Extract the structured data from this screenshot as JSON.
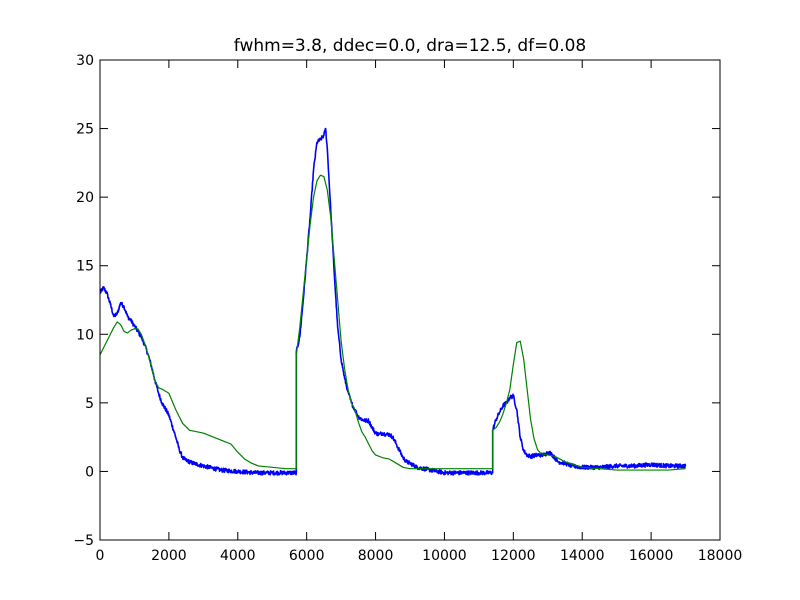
{
  "chart_data": {
    "type": "line",
    "title": "fwhm=3.8, ddec=0.0, dra=12.5, df=0.08",
    "xlabel": "",
    "ylabel": "",
    "xlim": [
      0,
      18000
    ],
    "ylim": [
      -5,
      30
    ],
    "xticks": [
      0,
      2000,
      4000,
      6000,
      8000,
      10000,
      12000,
      14000,
      16000,
      18000
    ],
    "yticks": [
      -5,
      0,
      5,
      10,
      15,
      20,
      25,
      30
    ],
    "grid": false,
    "series": [
      {
        "color": "#0000ff",
        "noise": 0.15,
        "x": [
          0,
          100,
          200,
          300,
          400,
          500,
          600,
          700,
          800,
          900,
          1000,
          1100,
          1200,
          1300,
          1400,
          1500,
          1600,
          1700,
          1800,
          2000,
          2200,
          2300,
          2400,
          2500,
          2700,
          3000,
          3500,
          4000,
          4500,
          5000,
          5500,
          5700,
          5700,
          5800,
          5900,
          6000,
          6100,
          6200,
          6300,
          6400,
          6500,
          6550,
          6600,
          6700,
          6800,
          6900,
          7000,
          7100,
          7200,
          7300,
          7400,
          7500,
          7600,
          7700,
          7800,
          7900,
          8000,
          8100,
          8200,
          8300,
          8400,
          8500,
          8600,
          8700,
          8800,
          8900,
          9000,
          9200,
          9400,
          9600,
          9800,
          10000,
          10500,
          11000,
          11400,
          11400,
          11500,
          11600,
          11700,
          11800,
          11900,
          12000,
          12100,
          12200,
          12300,
          12400,
          12500,
          12700,
          12900,
          13000,
          13100,
          13200,
          13300,
          13500,
          13700,
          14000,
          14500,
          15000,
          15500,
          16000,
          16500,
          17000
        ],
        "y": [
          13.0,
          13.4,
          13.0,
          12.2,
          11.3,
          11.5,
          12.3,
          12.0,
          11.3,
          11.0,
          10.6,
          10.2,
          9.8,
          9.2,
          8.5,
          7.6,
          6.6,
          5.7,
          5.0,
          4.1,
          2.5,
          1.6,
          1.0,
          0.8,
          0.6,
          0.4,
          0.1,
          0.0,
          -0.1,
          -0.1,
          -0.1,
          -0.1,
          8.7,
          9.8,
          12.5,
          15.5,
          18.5,
          22.0,
          24.0,
          24.2,
          24.5,
          25.0,
          23.5,
          19.0,
          14.5,
          10.5,
          8.2,
          6.8,
          5.8,
          5.0,
          4.5,
          4.0,
          3.8,
          3.7,
          3.7,
          3.2,
          2.8,
          2.7,
          2.8,
          2.7,
          2.7,
          2.5,
          2.0,
          1.5,
          1.0,
          0.7,
          0.6,
          0.3,
          0.2,
          0.1,
          0.0,
          -0.1,
          -0.1,
          -0.1,
          -0.1,
          3.0,
          3.8,
          4.3,
          4.8,
          5.0,
          5.4,
          5.5,
          4.5,
          2.5,
          1.5,
          1.2,
          1.1,
          1.2,
          1.2,
          1.4,
          1.3,
          1.0,
          0.7,
          0.6,
          0.4,
          0.3,
          0.3,
          0.4,
          0.4,
          0.5,
          0.4,
          0.4
        ]
      },
      {
        "color": "#008000",
        "noise": 0,
        "x": [
          0,
          100,
          200,
          300,
          400,
          500,
          600,
          700,
          800,
          900,
          1000,
          1100,
          1200,
          1300,
          1400,
          1500,
          1600,
          1700,
          1800,
          2000,
          2200,
          2400,
          2600,
          2800,
          3000,
          3200,
          3400,
          3600,
          3800,
          4000,
          4200,
          4400,
          4600,
          5000,
          5400,
          5700,
          5700,
          5800,
          5900,
          6000,
          6100,
          6200,
          6300,
          6400,
          6500,
          6600,
          6700,
          6800,
          6900,
          7000,
          7100,
          7200,
          7300,
          7400,
          7500,
          7600,
          7700,
          7800,
          7900,
          8000,
          8200,
          8400,
          8600,
          8800,
          9000,
          9500,
          10000,
          10500,
          11000,
          11400,
          11400,
          11500,
          11600,
          11700,
          11800,
          11900,
          12000,
          12100,
          12200,
          12300,
          12400,
          12500,
          12600,
          12700,
          12800,
          13000,
          13200,
          13500,
          14000,
          14500,
          15000,
          15500,
          16000,
          16500,
          17000
        ],
        "y": [
          8.5,
          9.0,
          9.5,
          10.0,
          10.5,
          10.9,
          10.7,
          10.2,
          10.1,
          10.3,
          10.4,
          10.4,
          10.0,
          9.3,
          8.5,
          7.5,
          6.6,
          6.1,
          6.0,
          5.7,
          4.5,
          3.5,
          3.0,
          2.9,
          2.8,
          2.6,
          2.4,
          2.2,
          2.0,
          1.4,
          0.9,
          0.6,
          0.4,
          0.3,
          0.2,
          0.2,
          8.5,
          10.5,
          13.0,
          15.5,
          18.0,
          20.0,
          21.2,
          21.6,
          21.5,
          20.5,
          18.5,
          15.5,
          12.5,
          9.5,
          7.5,
          6.0,
          5.0,
          4.5,
          3.6,
          2.9,
          2.5,
          2.0,
          1.5,
          1.2,
          1.0,
          0.9,
          0.6,
          0.3,
          0.2,
          0.2,
          0.2,
          0.2,
          0.2,
          0.2,
          3.0,
          3.2,
          3.6,
          4.2,
          5.0,
          6.0,
          7.8,
          9.4,
          9.5,
          8.2,
          6.0,
          3.8,
          2.4,
          1.6,
          1.3,
          1.2,
          1.1,
          0.7,
          0.3,
          0.2,
          0.1,
          0.1,
          0.1,
          0.1,
          0.2
        ]
      }
    ]
  }
}
